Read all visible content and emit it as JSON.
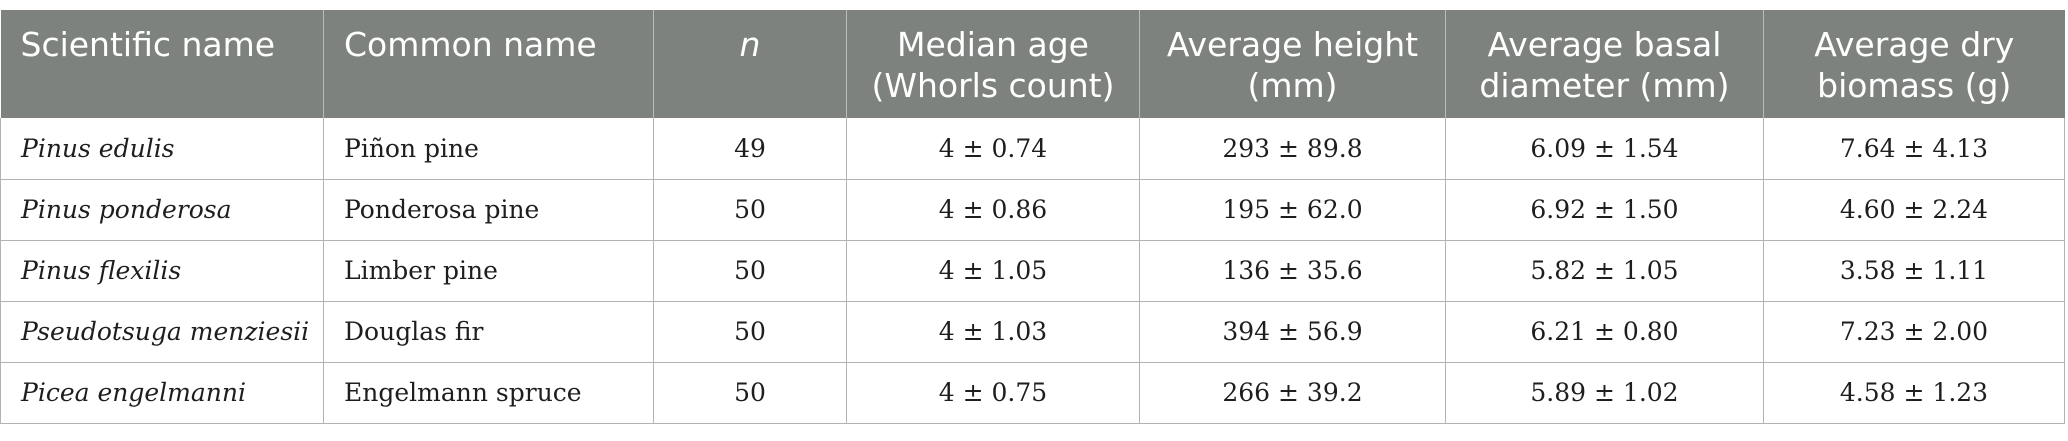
{
  "table": {
    "headers": [
      "Scientific name",
      "Common name",
      "n",
      "Median age (Whorls count)",
      "Average height (mm)",
      "Average basal diameter (mm)",
      "Average dry biomass (g)"
    ],
    "rows": [
      [
        "Pinus edulis",
        "Piñon pine",
        "49",
        "4 ± 0.74",
        "293 ± 89.8",
        "6.09 ± 1.54",
        "7.64 ± 4.13"
      ],
      [
        "Pinus ponderosa",
        "Ponderosa pine",
        "50",
        "4 ± 0.86",
        "195 ± 62.0",
        "6.92 ± 1.50",
        "4.60 ± 2.24"
      ],
      [
        "Pinus flexilis",
        "Limber pine",
        "50",
        "4 ± 1.05",
        "136 ± 35.6",
        "5.82 ± 1.05",
        "3.58 ± 1.11"
      ],
      [
        "Pseudotsuga menziesii",
        "Douglas fir",
        "50",
        "4 ± 1.03",
        "394 ± 56.9",
        "6.21 ± 0.80",
        "7.23 ± 2.00"
      ],
      [
        "Picea engelmanni",
        "Engelmann spruce",
        "50",
        "4 ± 0.75",
        "266 ± 39.2",
        "5.89 ± 1.02",
        "4.58 ± 1.23"
      ]
    ]
  }
}
